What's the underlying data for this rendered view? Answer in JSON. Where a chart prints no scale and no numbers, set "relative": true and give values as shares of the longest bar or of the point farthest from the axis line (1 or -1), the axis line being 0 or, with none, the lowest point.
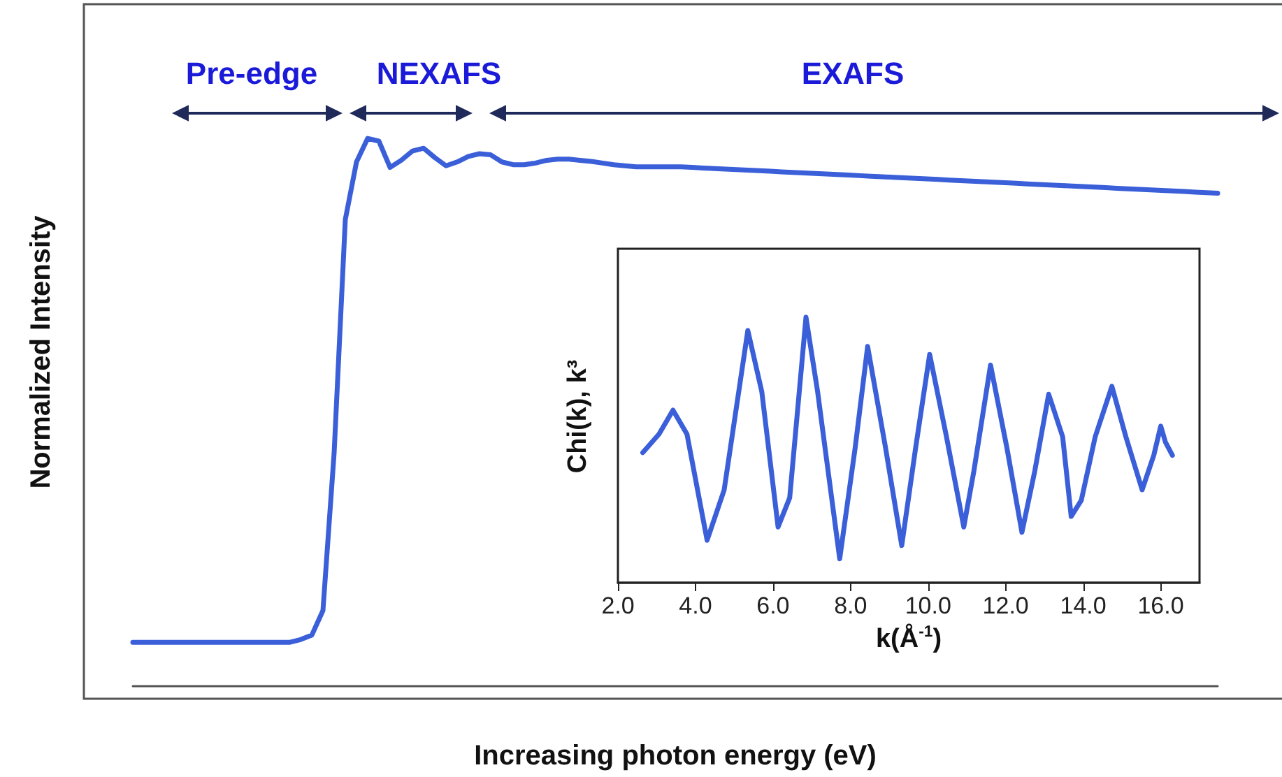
{
  "chart_data": [
    {
      "type": "line",
      "relative": true,
      "xlabel": "Increasing photon energy (eV)",
      "ylabel": "Normalized Intensity",
      "annotations": [
        "Pre-edge",
        "NEXAFS",
        "EXAFS"
      ],
      "categories": [
        null,
        null,
        null,
        null,
        null,
        null,
        null,
        null,
        null,
        null,
        null,
        null,
        null,
        null,
        null,
        null,
        null,
        null,
        null,
        null,
        null,
        null,
        null,
        null,
        null,
        null,
        null,
        null,
        null,
        null,
        null,
        null,
        null,
        null,
        null,
        null,
        null,
        null,
        null,
        null,
        null,
        null,
        null,
        null,
        null,
        null,
        null,
        null,
        null,
        null,
        null,
        null,
        null,
        null,
        null,
        null,
        null,
        null,
        null,
        null,
        null,
        null,
        null,
        null,
        null,
        null,
        null,
        null,
        null,
        null,
        null,
        null,
        null,
        null,
        null,
        null,
        null,
        null,
        null,
        null,
        null,
        null,
        null,
        null,
        null,
        null,
        null,
        null,
        null,
        null,
        null,
        null,
        null,
        null,
        null,
        null,
        null,
        null
      ],
      "series": [
        {
          "color": "#3a5fd9",
          "values": [
            0.08,
            0.08,
            0.08,
            0.08,
            0.08,
            0.08,
            0.08,
            0.08,
            0.08,
            0.08,
            0.08,
            0.08,
            0.08,
            0.08,
            0.08,
            0.085,
            0.093,
            0.138,
            0.426,
            0.852,
            0.957,
            1,
            0.995,
            0.947,
            0.96,
            0.977,
            0.982,
            0.965,
            0.95,
            0.957,
            0.967,
            0.972,
            0.97,
            0.957,
            0.952,
            0.952,
            0.955,
            0.96,
            0.962,
            0.962,
            0.96,
            0.958,
            0.955,
            0.952,
            0.95,
            0.948,
            0.948,
            0.948,
            0.948,
            0.948,
            0.947,
            0.946,
            0.945,
            0.944,
            0.943,
            0.942,
            0.941,
            0.94,
            0.939,
            0.938,
            0.937,
            0.936,
            0.935,
            0.934,
            0.933,
            0.932,
            0.931,
            0.93,
            0.929,
            0.928,
            0.927,
            0.926,
            0.925,
            0.924,
            0.923,
            0.922,
            0.921,
            0.92,
            0.919,
            0.918,
            0.917,
            0.916,
            0.915,
            0.914,
            0.913,
            0.912,
            0.911,
            0.91,
            0.909,
            0.908,
            0.907,
            0.906,
            0.905,
            0.904,
            0.903,
            0.902,
            0.901,
            0.9
          ]
        }
      ]
    },
    {
      "type": "line",
      "relative": true,
      "xlabel": "k(Å$^{-1}$)",
      "ylabel": "Chi(k), k³",
      "xlim": [
        2,
        17
      ],
      "xticks": [
        {
          "value": 2,
          "label": "2.0"
        },
        {
          "value": 4,
          "label": "4.0"
        },
        {
          "value": 6,
          "label": "6.0"
        },
        {
          "value": 8,
          "label": "8.0"
        },
        {
          "value": 10,
          "label": "10.0"
        },
        {
          "value": 12,
          "label": "12.0"
        },
        {
          "value": 14,
          "label": "14.0"
        },
        {
          "value": 16,
          "label": "16.0"
        }
      ],
      "x": [
        2.64,
        3.06,
        3.42,
        3.78,
        4.3,
        4.74,
        5.35,
        5.71,
        6.13,
        6.43,
        6.85,
        7.15,
        7.72,
        8.12,
        8.44,
        8.9,
        9.32,
        9.68,
        10.04,
        10.46,
        10.92,
        11.18,
        11.61,
        12.03,
        12.42,
        12.75,
        13.11,
        13.47,
        13.69,
        13.95,
        14.31,
        14.74,
        15.1,
        15.52,
        15.82,
        16.0,
        16.12,
        16.3
      ],
      "series": [
        {
          "color": "#3a5fd9",
          "values": [
            0.49,
            0.56,
            0.65,
            0.56,
            0.16,
            0.35,
            0.95,
            0.72,
            0.21,
            0.32,
            1,
            0.72,
            0.09,
            0.51,
            0.89,
            0.51,
            0.14,
            0.51,
            0.86,
            0.56,
            0.21,
            0.42,
            0.82,
            0.51,
            0.19,
            0.42,
            0.71,
            0.55,
            0.25,
            0.31,
            0.55,
            0.74,
            0.55,
            0.35,
            0.48,
            0.59,
            0.53,
            0.48
          ]
        }
      ]
    }
  ]
}
